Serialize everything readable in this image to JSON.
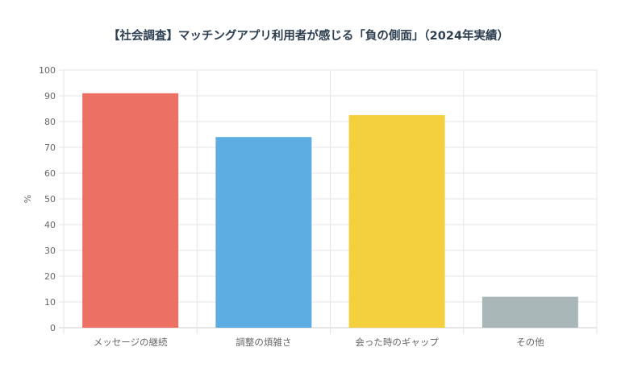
{
  "chart_data": {
    "type": "bar",
    "title": "【社会調査】マッチングアプリ利用者が感じる「負の側面」（2024年実績）",
    "xlabel": "",
    "ylabel": "%",
    "ylim": [
      0,
      100
    ],
    "yticks": [
      0,
      10,
      20,
      30,
      40,
      50,
      60,
      70,
      80,
      90,
      100
    ],
    "grid": true,
    "categories": [
      "メッセージの継続",
      "調整の煩雑さ",
      "会った時のギャップ",
      "その他"
    ],
    "values": [
      91,
      74,
      82.5,
      12
    ],
    "colors": [
      "#ec7063",
      "#5dade2",
      "#f4d03f",
      "#aab7b8"
    ]
  }
}
